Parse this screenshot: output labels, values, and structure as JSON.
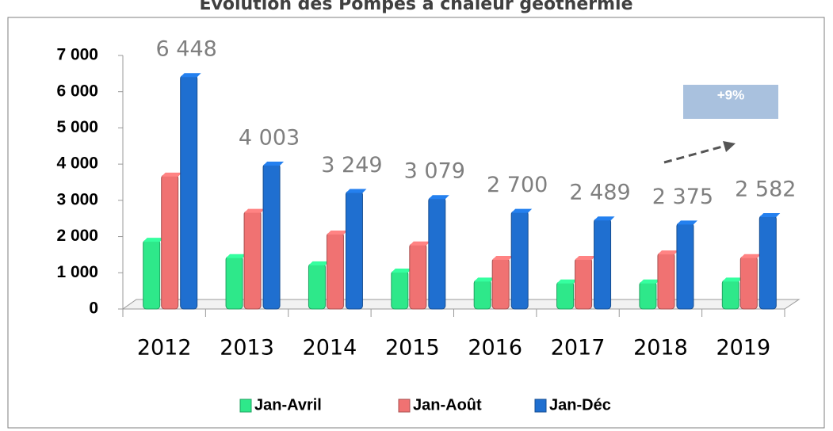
{
  "chart_data": {
    "type": "bar3d",
    "title": "Evolution des Pompes à chaleur géothermie",
    "categories": [
      "2012",
      "2013",
      "2014",
      "2015",
      "2016",
      "2017",
      "2018",
      "2019"
    ],
    "series": [
      {
        "name": "Jan-Avril",
        "color": "#2ee88a",
        "values": [
          1900,
          1450,
          1250,
          1050,
          800,
          750,
          750,
          800
        ]
      },
      {
        "name": "Jan-Août",
        "color": "#f07272",
        "values": [
          3700,
          2700,
          2100,
          1800,
          1400,
          1400,
          1550,
          1450
        ]
      },
      {
        "name": "Jan-Déc",
        "color": "#1f6fd0",
        "values": [
          6448,
          4003,
          3249,
          3079,
          2700,
          2489,
          2375,
          2582
        ],
        "value_labels": [
          "6 448",
          "4 003",
          "3 249",
          "3 079",
          "2 700",
          "2 489",
          "2 375",
          "2 582"
        ]
      }
    ],
    "ylim": [
      0,
      7000
    ],
    "yticks": [
      0,
      {
        "value": 1000,
        "label": "1 000"
      },
      {
        "value": 2000,
        "label": "2 000"
      },
      {
        "value": 3000,
        "label": "3 000"
      },
      {
        "value": 4000,
        "label": "4 000"
      },
      {
        "value": 5000,
        "label": "5 000"
      },
      {
        "value": 6000,
        "label": "6 000"
      },
      {
        "value": 7000,
        "label": "7 000"
      }
    ],
    "annotation": "+9%",
    "legend": "bottom"
  }
}
